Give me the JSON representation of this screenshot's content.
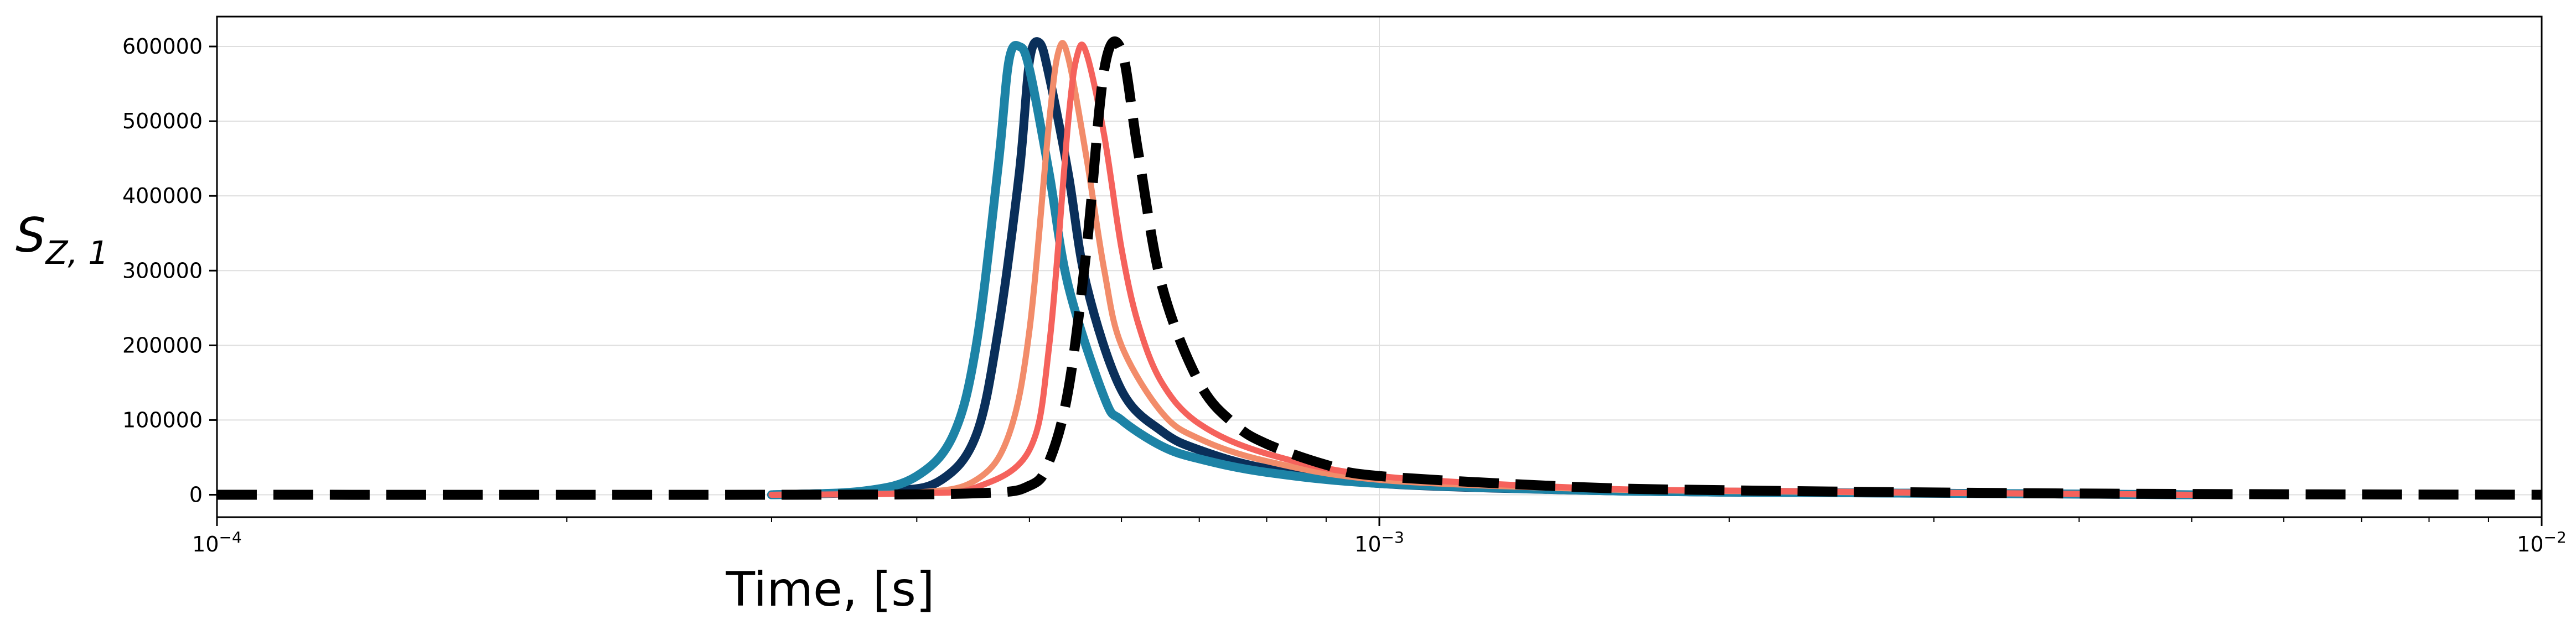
{
  "chart_data": {
    "type": "line",
    "xscale": "log",
    "xlim": [
      0.0001,
      0.01
    ],
    "ylim": [
      -30000,
      640000
    ],
    "grid": true,
    "xlabel": "Time, [s]",
    "ylabel": "S_{Z,1}",
    "ylabel_main": "S",
    "ylabel_sub": "Z, 1",
    "x_ticks": [
      {
        "value": 0.0001,
        "base": "10",
        "exp": "−4"
      },
      {
        "value": 0.001,
        "base": "10",
        "exp": "−3"
      },
      {
        "value": 0.01,
        "base": "10",
        "exp": "−2"
      }
    ],
    "y_ticks": [
      {
        "value": 0,
        "label": "0"
      },
      {
        "value": 100000,
        "label": "100000"
      },
      {
        "value": 200000,
        "label": "200000"
      },
      {
        "value": 300000,
        "label": "300000"
      },
      {
        "value": 400000,
        "label": "400000"
      },
      {
        "value": 500000,
        "label": "500000"
      },
      {
        "value": 600000,
        "label": "600000"
      }
    ],
    "series": [
      {
        "color": "#000000",
        "style": "dashed",
        "x": [
          0.0001,
          0.0003,
          0.00045,
          0.0005,
          0.00052,
          0.00054,
          0.00056,
          0.00058,
          0.0006,
          0.00062,
          0.00065,
          0.0007,
          0.00075,
          0.0008,
          0.0009,
          0.001,
          0.0015,
          0.002,
          0.003,
          0.005,
          0.01
        ],
        "y": [
          0,
          0,
          2000,
          12000,
          45000,
          140000,
          330000,
          570000,
          595000,
          460000,
          280000,
          150000,
          95000,
          68000,
          40000,
          25000,
          10000,
          6000,
          3000,
          1000,
          0
        ]
      },
      {
        "color": "#0a2f5a",
        "style": "solid",
        "x": [
          0.0003,
          0.00038,
          0.00042,
          0.00045,
          0.00047,
          0.00049,
          0.0005,
          0.00051,
          0.00052,
          0.00054,
          0.00056,
          0.0006,
          0.00065,
          0.0007,
          0.0008,
          0.001,
          0.0015,
          0.002,
          0.003,
          0.005
        ],
        "y": [
          0,
          5000,
          20000,
          80000,
          220000,
          430000,
          580000,
          605000,
          560000,
          430000,
          280000,
          140000,
          85000,
          60000,
          35000,
          15000,
          6000,
          3500,
          2000,
          0
        ]
      },
      {
        "color": "#1d83a6",
        "style": "solid",
        "x": [
          0.0003,
          0.00036,
          0.0004,
          0.00043,
          0.00045,
          0.00047,
          0.00048,
          0.00049,
          0.0005,
          0.00052,
          0.00054,
          0.00058,
          0.0006,
          0.00065,
          0.0007,
          0.0008,
          0.001,
          0.0015,
          0.002,
          0.003,
          0.005
        ],
        "y": [
          0,
          5000,
          25000,
          80000,
          200000,
          440000,
          580000,
          600000,
          570000,
          430000,
          280000,
          130000,
          100000,
          65000,
          48000,
          30000,
          15000,
          6000,
          3500,
          2000,
          0
        ]
      },
      {
        "color": "#f28c6a",
        "style": "solid",
        "x": [
          0.0003,
          0.0004,
          0.00045,
          0.00048,
          0.0005,
          0.00052,
          0.00053,
          0.00054,
          0.00056,
          0.00058,
          0.0006,
          0.00065,
          0.0007,
          0.0008,
          0.001,
          0.0015,
          0.002,
          0.003,
          0.005
        ],
        "y": [
          0,
          3000,
          20000,
          80000,
          220000,
          500000,
          595000,
          585000,
          450000,
          300000,
          200000,
          110000,
          75000,
          45000,
          20000,
          8000,
          5000,
          2500,
          0
        ]
      },
      {
        "color": "#f5625c",
        "style": "solid",
        "x": [
          0.0003,
          0.0004,
          0.00045,
          0.0005,
          0.00052,
          0.00054,
          0.00055,
          0.00056,
          0.00058,
          0.0006,
          0.00062,
          0.00065,
          0.0007,
          0.0008,
          0.001,
          0.0015,
          0.002,
          0.003,
          0.005
        ],
        "y": [
          0,
          2000,
          10000,
          60000,
          200000,
          500000,
          590000,
          590000,
          480000,
          330000,
          230000,
          150000,
          95000,
          55000,
          25000,
          9000,
          5500,
          2800,
          0
        ]
      }
    ]
  }
}
